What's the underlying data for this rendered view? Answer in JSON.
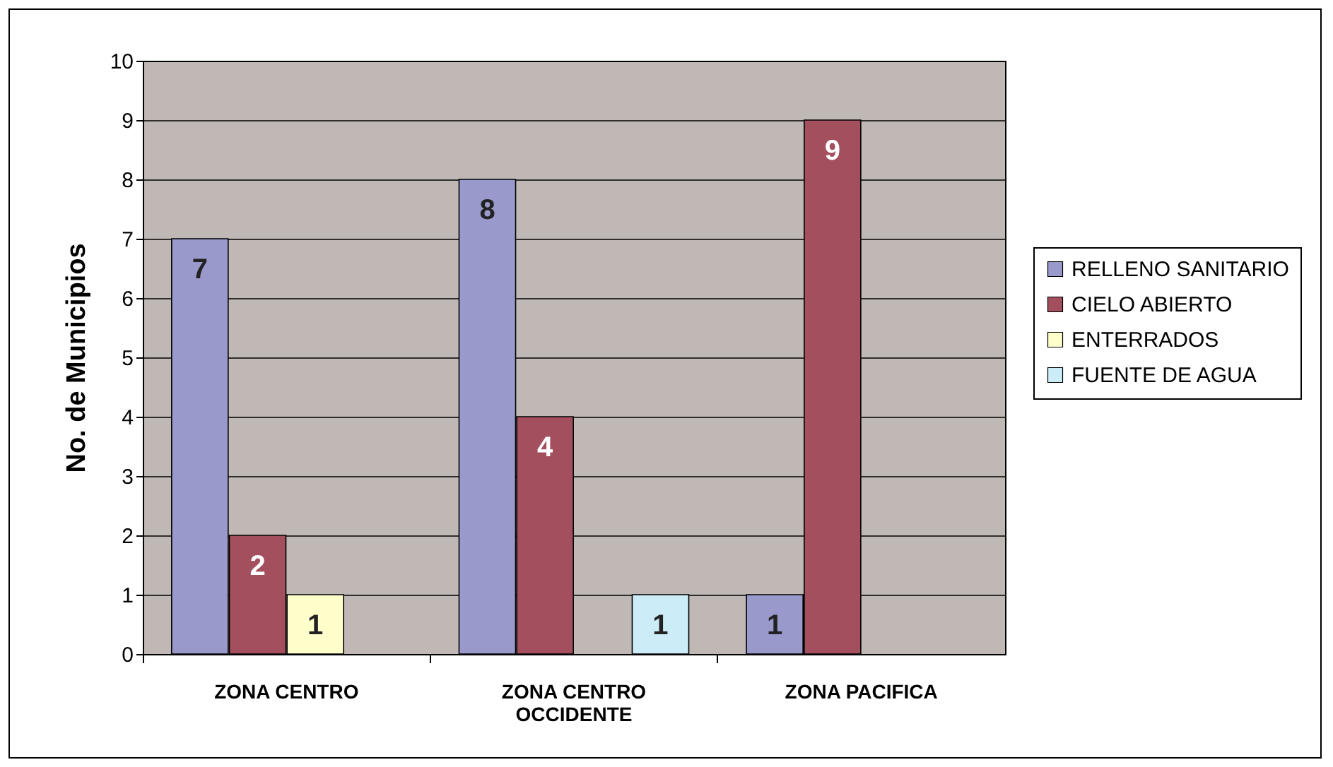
{
  "chart_data": {
    "type": "bar",
    "ylabel": "No. de Municipios",
    "categories": [
      "ZONA CENTRO",
      "ZONA CENTRO OCCIDENTE",
      "ZONA PACIFICA"
    ],
    "series": [
      {
        "name": "RELLENO SANITARIO",
        "color": "#9999cc",
        "values": [
          7,
          8,
          1
        ]
      },
      {
        "name": "CIELO ABIERTO",
        "color": "#a34f5e",
        "values": [
          2,
          4,
          9
        ]
      },
      {
        "name": "ENTERRADOS",
        "color": "#ffffcc",
        "values": [
          1,
          null,
          null
        ]
      },
      {
        "name": "FUENTE DE AGUA",
        "color": "#ccecf8",
        "values": [
          null,
          1,
          null
        ]
      }
    ],
    "ylim": [
      0,
      10
    ],
    "yticks": [
      0,
      1,
      2,
      3,
      4,
      5,
      6,
      7,
      8,
      9,
      10
    ],
    "grid": "y",
    "legend": "right",
    "data_labels": true
  }
}
